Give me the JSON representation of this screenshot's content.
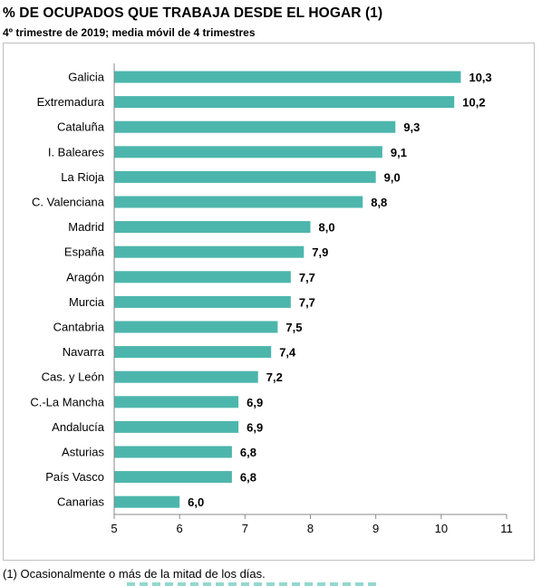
{
  "title": "% DE OCUPADOS QUE TRABAJA DESDE EL HOGAR (1)",
  "subtitle": "4º trimestre de 2019; media móvil de 4 trimestres",
  "footnote": "(1) Ocasionalmente o más de la mitad de los días.",
  "colors": {
    "bar": "#4db6ac",
    "axis": "#888888",
    "frame": "#bfbfbf"
  },
  "chart_data": {
    "type": "bar",
    "orientation": "horizontal",
    "title": "% DE OCUPADOS QUE TRABAJA DESDE EL HOGAR (1)",
    "subtitle": "4º trimestre de 2019; media móvil de 4 trimestres",
    "xlabel": "",
    "ylabel": "",
    "xlim": [
      5,
      11
    ],
    "xticks": [
      "5",
      "6",
      "7",
      "8",
      "9",
      "10",
      "11"
    ],
    "grid": false,
    "legend": false,
    "categories": [
      "Galicia",
      "Extremadura",
      "Cataluña",
      "I. Baleares",
      "La Rioja",
      "C. Valenciana",
      "Madrid",
      "España",
      "Aragón",
      "Murcia",
      "Cantabria",
      "Navarra",
      "Cas. y León",
      "C.-La Mancha",
      "Andalucía",
      "Asturias",
      "País Vasco",
      "Canarias"
    ],
    "values": [
      10.3,
      10.2,
      9.3,
      9.1,
      9.0,
      8.8,
      8.0,
      7.9,
      7.7,
      7.7,
      7.5,
      7.4,
      7.2,
      6.9,
      6.9,
      6.8,
      6.8,
      6.0
    ],
    "value_labels": [
      "10,3",
      "10,2",
      "9,3",
      "9,1",
      "9,0",
      "8,8",
      "8,0",
      "7,9",
      "7,7",
      "7,7",
      "7,5",
      "7,4",
      "7,2",
      "6,9",
      "6,9",
      "6,8",
      "6,8",
      "6,0"
    ]
  }
}
